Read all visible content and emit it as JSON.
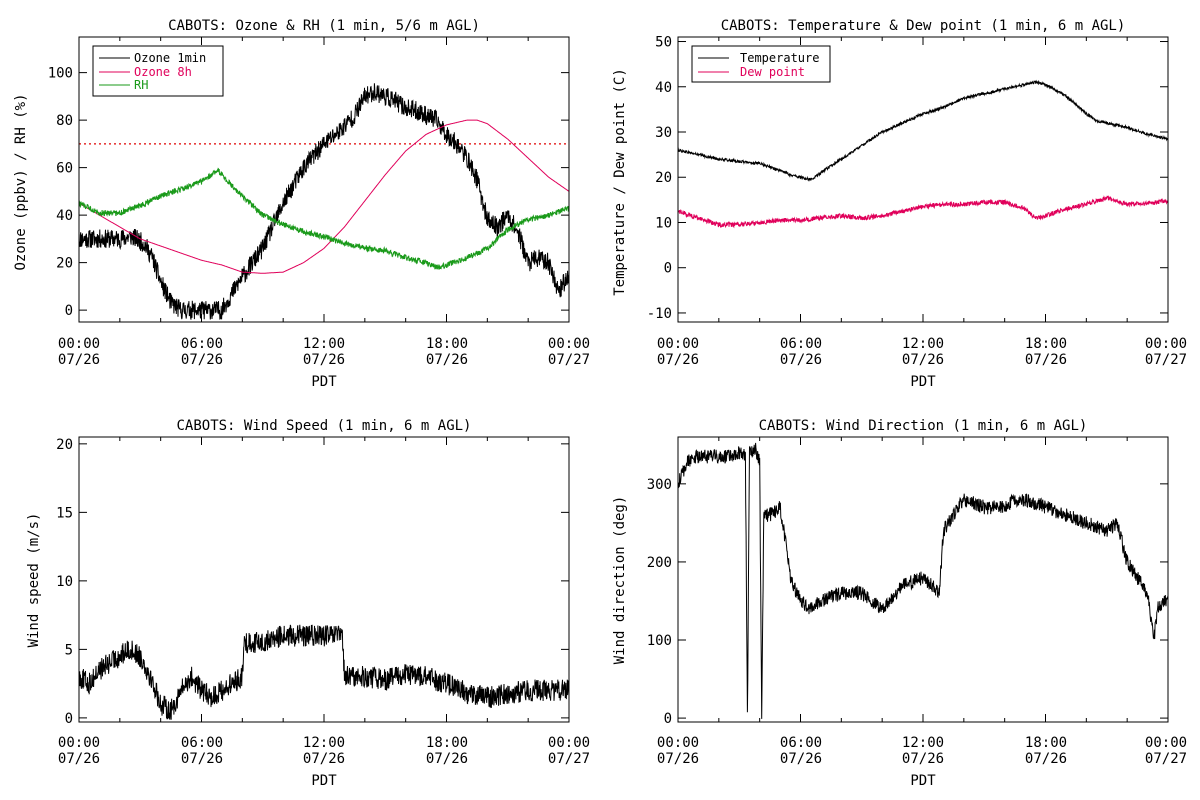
{
  "figure": {
    "x_tick_labels": [
      {
        "time": "00:00",
        "date": "07/26"
      },
      {
        "time": "06:00",
        "date": "07/26"
      },
      {
        "time": "12:00",
        "date": "07/26"
      },
      {
        "time": "18:00",
        "date": "07/26"
      },
      {
        "time": "00:00",
        "date": "07/27"
      }
    ],
    "xlabel": "PDT"
  },
  "chart_data": [
    {
      "id": "ozone-rh",
      "type": "line",
      "title": "CABOTS: Ozone & RH (1 min, 5/6 m AGL)",
      "xlabel": "PDT",
      "ylabel": "Ozone (ppbv) / RH (%)",
      "xlim": [
        0,
        24
      ],
      "ylim": [
        -5,
        115
      ],
      "yticks": [
        0,
        20,
        40,
        60,
        80,
        100
      ],
      "grid": false,
      "legend": {
        "position": "top-left",
        "entries": [
          {
            "label": "Ozone 1min",
            "color": "#000000"
          },
          {
            "label": "Ozone 8h",
            "color": "#e0005a"
          },
          {
            "label": "RH",
            "color": "#1a9a1a"
          }
        ]
      },
      "reference_line": {
        "y": 70,
        "style": "dotted",
        "color": "#e00000"
      },
      "series": [
        {
          "name": "Ozone 1min",
          "color": "#000000",
          "noise": 4,
          "x": [
            0,
            1,
            2,
            2.6,
            3.2,
            3.6,
            4.0,
            4.5,
            5.0,
            6.0,
            7.0,
            7.2,
            8.0,
            9.0,
            10.0,
            11.0,
            12.0,
            12.7,
            13.5,
            14.0,
            14.5,
            15.0,
            15.5,
            16.0,
            16.5,
            17.0,
            17.5,
            18.0,
            18.5,
            19.0,
            19.5,
            20.0,
            20.5,
            21.0,
            21.5,
            22.0,
            22.5,
            23.0,
            23.5,
            24.0
          ],
          "y": [
            30,
            30,
            30,
            31,
            28,
            22,
            12,
            3,
            0,
            0,
            0,
            3,
            14,
            26,
            45,
            60,
            70,
            75,
            82,
            90,
            92,
            90,
            88,
            85,
            84,
            82,
            80,
            74,
            70,
            64,
            55,
            38,
            35,
            40,
            33,
            20,
            22,
            20,
            8,
            15
          ]
        },
        {
          "name": "Ozone 8h",
          "color": "#e0005a",
          "noise": 0,
          "x": [
            0,
            1,
            2,
            3,
            4,
            5,
            6,
            7,
            8,
            9,
            10,
            11,
            12,
            13,
            14,
            15,
            16,
            17,
            18,
            19,
            19.5,
            20,
            21,
            22,
            23,
            24
          ],
          "y": [
            45,
            40,
            35,
            30,
            27,
            24,
            21,
            19,
            16,
            15.5,
            16,
            20,
            26,
            35,
            46,
            57,
            67,
            74,
            78,
            80,
            80,
            78.5,
            72,
            64,
            56,
            50
          ]
        },
        {
          "name": "RH",
          "color": "#1a9a1a",
          "noise": 1.2,
          "x": [
            0,
            1,
            2,
            3,
            4,
            5,
            6,
            6.8,
            7.2,
            8,
            9,
            10,
            11,
            12,
            13,
            14,
            15,
            16,
            17,
            17.5,
            18,
            19,
            20,
            21,
            22,
            23,
            24
          ],
          "y": [
            45,
            41,
            41,
            44,
            48,
            51,
            54,
            59,
            55,
            48,
            40,
            36,
            33,
            31,
            28,
            26,
            25,
            22,
            20,
            18,
            19,
            22,
            26,
            34,
            38,
            40,
            43
          ]
        }
      ]
    },
    {
      "id": "temp-dew",
      "type": "line",
      "title": "CABOTS: Temperature & Dew point (1 min, 6 m AGL)",
      "xlabel": "PDT",
      "ylabel": "Temperature / Dew point (C)",
      "xlim": [
        0,
        24
      ],
      "ylim": [
        -12,
        51
      ],
      "yticks": [
        -10,
        0,
        10,
        20,
        30,
        40,
        50
      ],
      "grid": false,
      "legend": {
        "position": "top-left",
        "entries": [
          {
            "label": "Temperature",
            "color": "#000000"
          },
          {
            "label": "Dew point",
            "color": "#e0005a"
          }
        ]
      },
      "series": [
        {
          "name": "Temperature",
          "color": "#000000",
          "noise": 0.3,
          "x": [
            0,
            1,
            2,
            3,
            4,
            5,
            5.5,
            6,
            6.5,
            7,
            8,
            9,
            10,
            11,
            12,
            13,
            14,
            15,
            16,
            17,
            17.5,
            18,
            19,
            20,
            20.5,
            21,
            22,
            23,
            24
          ],
          "y": [
            26,
            25,
            24,
            23.5,
            23,
            21.5,
            20.5,
            20,
            19.5,
            21,
            24,
            27,
            30,
            32,
            34,
            35.5,
            37.5,
            38.5,
            39.5,
            40.5,
            41,
            40.5,
            38,
            34,
            32.5,
            32,
            31,
            29.5,
            28.5
          ]
        },
        {
          "name": "Dew point",
          "color": "#e0005a",
          "noise": 0.5,
          "x": [
            0,
            1,
            2,
            3,
            4,
            5,
            6,
            7,
            8,
            9,
            10,
            11,
            12,
            13,
            14,
            15,
            16,
            17,
            17.5,
            18,
            19,
            20,
            21,
            22,
            23,
            24
          ],
          "y": [
            12.5,
            11,
            9.5,
            9.5,
            10,
            10.5,
            10.5,
            11,
            11.5,
            11,
            11.5,
            12.5,
            13.5,
            14,
            14,
            14.5,
            14.5,
            13,
            11,
            11.5,
            13,
            14,
            15.5,
            14,
            14.2,
            14.8
          ]
        }
      ]
    },
    {
      "id": "wind-speed",
      "type": "line",
      "title": "CABOTS: Wind Speed (1 min, 6 m AGL)",
      "xlabel": "PDT",
      "ylabel": "Wind speed (m/s)",
      "xlim": [
        0,
        24
      ],
      "ylim": [
        -0.3,
        20.5
      ],
      "yticks": [
        0,
        5,
        10,
        15,
        20
      ],
      "grid": false,
      "series": [
        {
          "name": "",
          "color": "#000000",
          "noise": 0.8,
          "x": [
            0,
            0.5,
            1,
            1.5,
            2,
            2.5,
            3,
            3.5,
            4,
            4.5,
            5,
            5.5,
            6,
            6.5,
            7,
            7.5,
            8,
            8.1,
            9,
            10,
            11,
            12,
            12.9,
            13,
            14,
            15,
            16,
            17,
            18,
            18.5,
            19,
            20,
            21,
            22,
            23,
            24
          ],
          "y": [
            3,
            2.5,
            3.5,
            4,
            4.5,
            5,
            4.5,
            3,
            1,
            0.5,
            2,
            3,
            2,
            1.5,
            2,
            2.5,
            3,
            5.5,
            5.5,
            6,
            6,
            6,
            6,
            3,
            3,
            2.8,
            3.2,
            3,
            2.5,
            2.2,
            1.8,
            1.5,
            1.8,
            2,
            2,
            2
          ]
        }
      ]
    },
    {
      "id": "wind-direction",
      "type": "line",
      "title": "CABOTS: Wind Direction (1 min, 6 m AGL)",
      "xlabel": "PDT",
      "ylabel": "Wind direction (deg)",
      "xlim": [
        0,
        24
      ],
      "ylim": [
        -5,
        360
      ],
      "yticks": [
        0,
        100,
        200,
        300
      ],
      "grid": false,
      "series": [
        {
          "name": "",
          "color": "#000000",
          "noise": 9,
          "x": [
            0,
            0.5,
            1,
            1.5,
            2,
            2.5,
            3,
            3.3,
            3.4,
            3.5,
            3.8,
            4.0,
            4.1,
            4.2,
            4.5,
            5,
            5.3,
            5.5,
            6,
            6.5,
            7,
            8,
            9,
            10,
            11,
            12,
            12.8,
            13.0,
            13.5,
            14,
            15,
            16,
            16.5,
            17,
            18,
            19,
            20,
            21,
            21.5,
            22,
            22.5,
            23,
            23.3,
            23.5,
            24
          ],
          "y": [
            300,
            330,
            335,
            335,
            335,
            335,
            340,
            338,
            0,
            340,
            345,
            330,
            0,
            260,
            260,
            270,
            220,
            180,
            150,
            140,
            150,
            160,
            160,
            140,
            170,
            180,
            160,
            240,
            260,
            280,
            270,
            270,
            280,
            280,
            270,
            260,
            250,
            240,
            250,
            200,
            180,
            160,
            100,
            140,
            155
          ]
        }
      ]
    }
  ]
}
